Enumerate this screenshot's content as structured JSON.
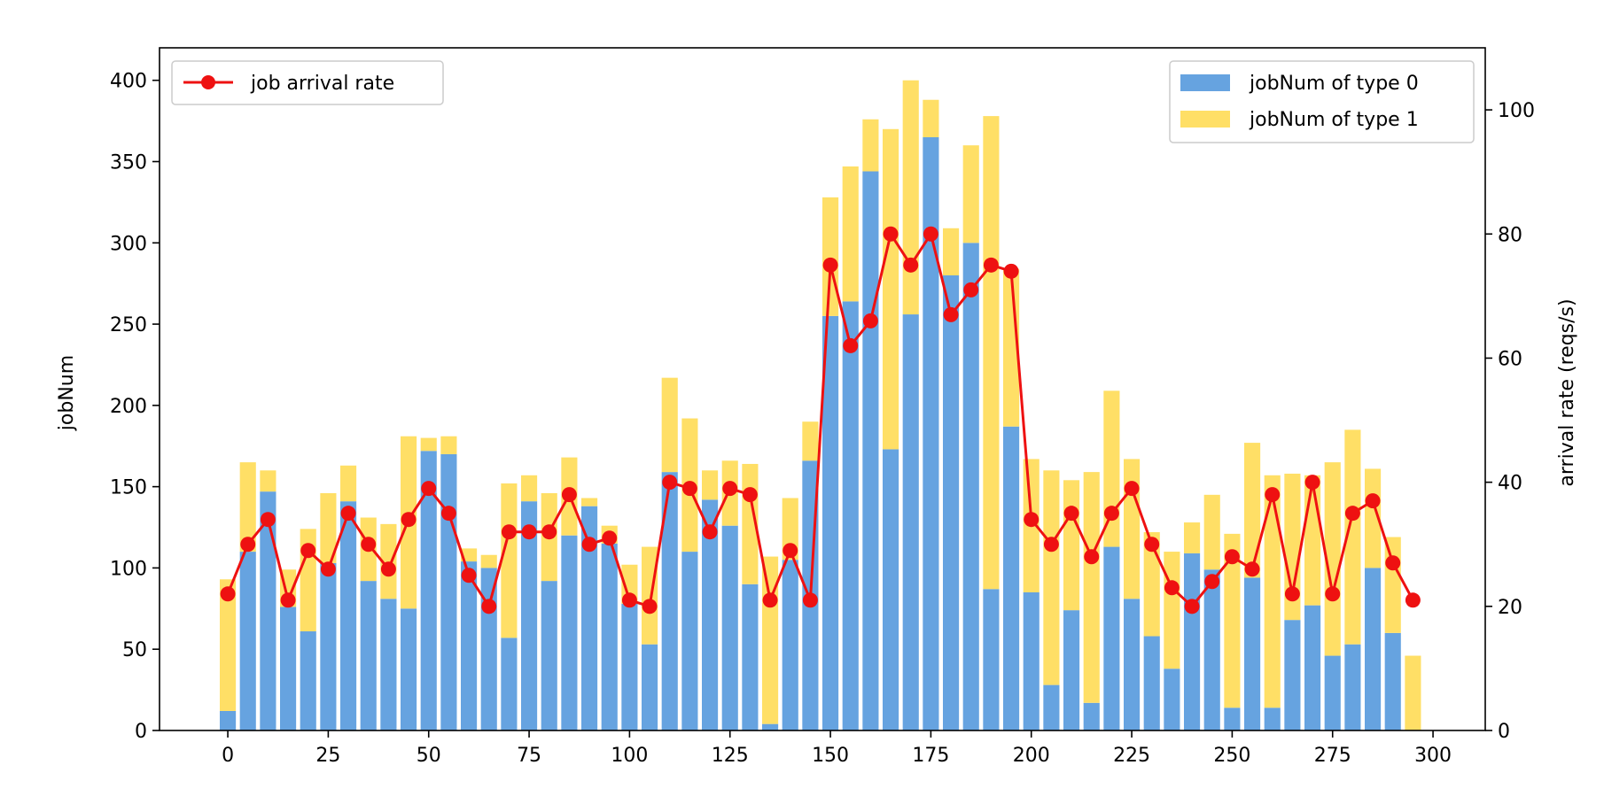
{
  "chart_data": {
    "type": "bar",
    "stacked": true,
    "x": [
      0,
      5,
      10,
      15,
      20,
      25,
      30,
      35,
      40,
      45,
      50,
      55,
      60,
      65,
      70,
      75,
      80,
      85,
      90,
      95,
      100,
      105,
      110,
      115,
      120,
      125,
      130,
      135,
      140,
      145,
      150,
      155,
      160,
      165,
      170,
      175,
      180,
      185,
      190,
      195,
      200,
      205,
      210,
      215,
      220,
      225,
      230,
      235,
      240,
      245,
      250,
      255,
      260,
      265,
      270,
      275,
      280,
      285,
      290,
      295
    ],
    "xlim": [
      -17,
      313
    ],
    "xticks": [
      0,
      25,
      50,
      75,
      100,
      125,
      150,
      175,
      200,
      225,
      250,
      275,
      300
    ],
    "ylabel": "jobNum",
    "ylim": [
      0,
      420
    ],
    "yticks": [
      0,
      50,
      100,
      150,
      200,
      250,
      300,
      350,
      400
    ],
    "y2label": "arrival rate (reqs/s)",
    "y2lim": [
      0,
      110
    ],
    "y2ticks": [
      0,
      20,
      40,
      60,
      80,
      100
    ],
    "colors": {
      "type0": "#66a3e0",
      "type1": "#ffdf66",
      "rate": "#ee1111"
    },
    "series": [
      {
        "name": "jobNum of type 0",
        "axis": "left",
        "values": [
          12,
          110,
          147,
          76,
          61,
          103,
          141,
          92,
          81,
          75,
          172,
          170,
          104,
          100,
          57,
          141,
          92,
          120,
          138,
          115,
          78,
          53,
          159,
          110,
          142,
          126,
          90,
          4,
          105,
          166,
          255,
          264,
          344,
          173,
          256,
          365,
          280,
          300,
          87,
          187,
          85,
          28,
          74,
          17,
          113,
          81,
          58,
          38,
          109,
          99,
          14,
          94,
          14,
          68,
          77,
          46,
          53,
          100,
          60,
          0
        ]
      },
      {
        "name": "jobNum of type 1",
        "axis": "left",
        "values": [
          81,
          55,
          13,
          23,
          63,
          43,
          22,
          39,
          46,
          106,
          8,
          11,
          8,
          8,
          95,
          16,
          54,
          48,
          5,
          11,
          24,
          60,
          58,
          82,
          18,
          40,
          74,
          103,
          38,
          24,
          73,
          83,
          32,
          197,
          144,
          23,
          29,
          60,
          291,
          97,
          82,
          132,
          80,
          142,
          96,
          86,
          64,
          72,
          19,
          46,
          107,
          83,
          143,
          90,
          80,
          119,
          132,
          61,
          59,
          46
        ]
      },
      {
        "name": "job arrival rate",
        "axis": "right",
        "type": "line",
        "values": [
          22,
          30,
          34,
          21,
          29,
          26,
          35,
          30,
          26,
          34,
          39,
          35,
          25,
          20,
          32,
          32,
          32,
          38,
          30,
          31,
          21,
          20,
          40,
          39,
          32,
          39,
          38,
          21,
          29,
          21,
          75,
          62,
          66,
          80,
          75,
          80,
          67,
          71,
          75,
          74,
          34,
          30,
          35,
          28,
          35,
          39,
          30,
          23,
          20,
          24,
          28,
          26,
          38,
          22,
          40,
          22,
          35,
          37,
          27,
          21
        ]
      }
    ],
    "legends": [
      {
        "placement": "top-left",
        "entries": [
          "job arrival rate"
        ]
      },
      {
        "placement": "top-right",
        "entries": [
          "jobNum of type 0",
          "jobNum of type 1"
        ]
      }
    ]
  }
}
